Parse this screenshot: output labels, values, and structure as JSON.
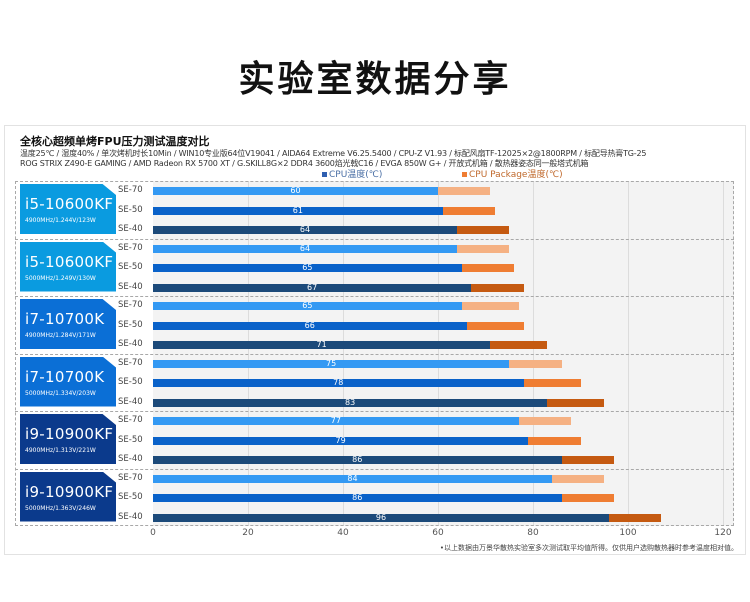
{
  "page": {
    "title": "实验室数据分享"
  },
  "chart": {
    "title": "全核心超频单烤FPU压力测试温度对比",
    "subtitle_lines": [
      "温度25℃ / 湿度40% / 单次烤机时长10Min / WIN10专业版64位V19041 / AIDA64 Extreme V6.25.5400 / CPU-Z V1.93 / 标配风扇TF-12025×2@1800RPM / 标配导热膏TG-25",
      "ROG STRIX Z490-E GAMING / AMD Radeon RX 5700 XT / G.SKILL8G×2 DDR4 3600焰光戟C16 / EVGA 850W G+ / 开放式机箱 / 散热器姿态同一般塔式机箱"
    ],
    "footnote": "•以上数据由万景华散热实验室多次测试取平均值所得。仅供用户选购散热器时参考温度相对值。"
  },
  "colors": {
    "card_i5": "#0a9be0",
    "card_i7": "#0b6fd6",
    "card_i9": "#0b3a8c",
    "cpu_se70": "#3399f3",
    "cpu_se50": "#0a62c9",
    "cpu_se40": "#1c4a7a",
    "pkg_se70": "#f5b183",
    "pkg_se50": "#ef7d32",
    "pkg_se40": "#c55a11",
    "legend_cpu": "#2f5fb0",
    "legend_pkg": "#ef7d32"
  },
  "chart_data": {
    "type": "bar",
    "orientation": "horizontal",
    "stacked_overlay": true,
    "title": "全核心超频单烤FPU压力测试温度对比",
    "xlabel": "",
    "ylabel": "",
    "xlim": [
      0,
      120
    ],
    "xticks": [
      0,
      20,
      40,
      60,
      80,
      100,
      120
    ],
    "grid": true,
    "legend_position": "top",
    "legend": [
      "CPU温度(℃)",
      "CPU Package温度(℃)"
    ],
    "row_labels": [
      "SE-70",
      "SE-50",
      "SE-40"
    ],
    "groups": [
      {
        "cpu": "i5-10600KF",
        "spec": "4900MHz/1.244V/123W",
        "tier": "i5",
        "cpu_temp": [
          60,
          61,
          64
        ],
        "package_temp": [
          71,
          72,
          75
        ]
      },
      {
        "cpu": "i5-10600KF",
        "spec": "5000MHz/1.249V/130W",
        "tier": "i5",
        "cpu_temp": [
          64,
          65,
          67
        ],
        "package_temp": [
          75,
          76,
          78
        ]
      },
      {
        "cpu": "i7-10700K",
        "spec": "4900MHz/1.284V/171W",
        "tier": "i7",
        "cpu_temp": [
          65,
          66,
          71
        ],
        "package_temp": [
          77,
          78,
          83
        ]
      },
      {
        "cpu": "i7-10700K",
        "spec": "5000MHz/1.334V/203W",
        "tier": "i7",
        "cpu_temp": [
          75,
          78,
          83
        ],
        "package_temp": [
          86,
          90,
          95
        ]
      },
      {
        "cpu": "i9-10900KF",
        "spec": "4900MHz/1.313V/221W",
        "tier": "i9",
        "cpu_temp": [
          77,
          79,
          86
        ],
        "package_temp": [
          88,
          90,
          97
        ]
      },
      {
        "cpu": "i9-10900KF",
        "spec": "5000MHz/1.363V/246W",
        "tier": "i9",
        "cpu_temp": [
          84,
          86,
          96
        ],
        "package_temp": [
          95,
          97,
          107
        ]
      }
    ]
  }
}
